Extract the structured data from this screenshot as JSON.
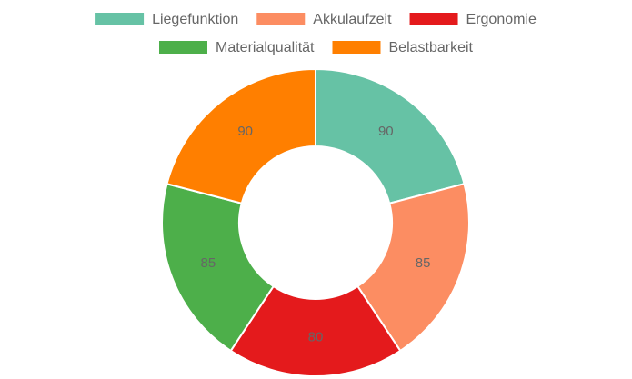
{
  "chart_data": {
    "type": "doughnut",
    "categories": [
      "Liegefunktion",
      "Akkulaufzeit",
      "Ergonomie",
      "Materialqualität",
      "Belastbarkeit"
    ],
    "values": [
      90,
      85,
      80,
      85,
      90
    ],
    "colors": [
      "#66c2a5",
      "#fc8d62",
      "#e41a1c",
      "#4daf4a",
      "#ff7f00"
    ],
    "legend": "top"
  }
}
